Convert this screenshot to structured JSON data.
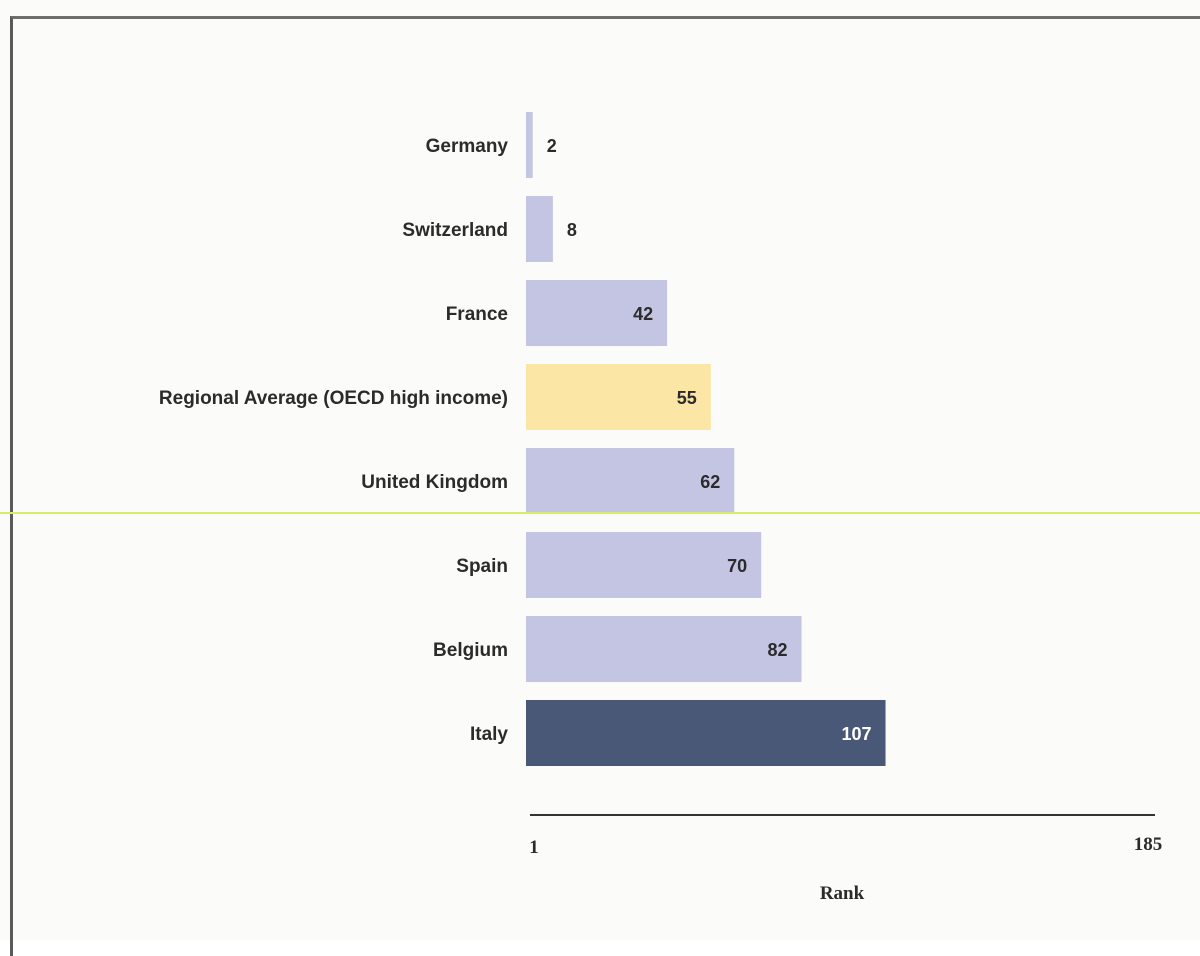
{
  "chart_data": {
    "type": "bar",
    "orientation": "horizontal",
    "title": "",
    "xlabel": "Rank",
    "ylabel": "",
    "categories": [
      "Germany",
      "Switzerland",
      "France",
      "Regional Average (OECD high income)",
      "United Kingdom",
      "Spain",
      "Belgium",
      "Italy"
    ],
    "values": [
      2,
      8,
      42,
      55,
      62,
      70,
      82,
      107
    ],
    "xlim": [
      1,
      185
    ],
    "x_ticks": [
      "1",
      "185"
    ],
    "grid": false,
    "colors": {
      "default": "#c3c5e2",
      "regional_average": "#fbe6a6",
      "highlight": "#4a5878",
      "value_text_dark": "#2b2b2b",
      "value_text_light": "#ffffff",
      "axis": "#333333",
      "stray_line": "#d8ec6a"
    },
    "bar_colors": [
      "default",
      "default",
      "default",
      "regional_average",
      "default",
      "default",
      "default",
      "highlight"
    ]
  }
}
